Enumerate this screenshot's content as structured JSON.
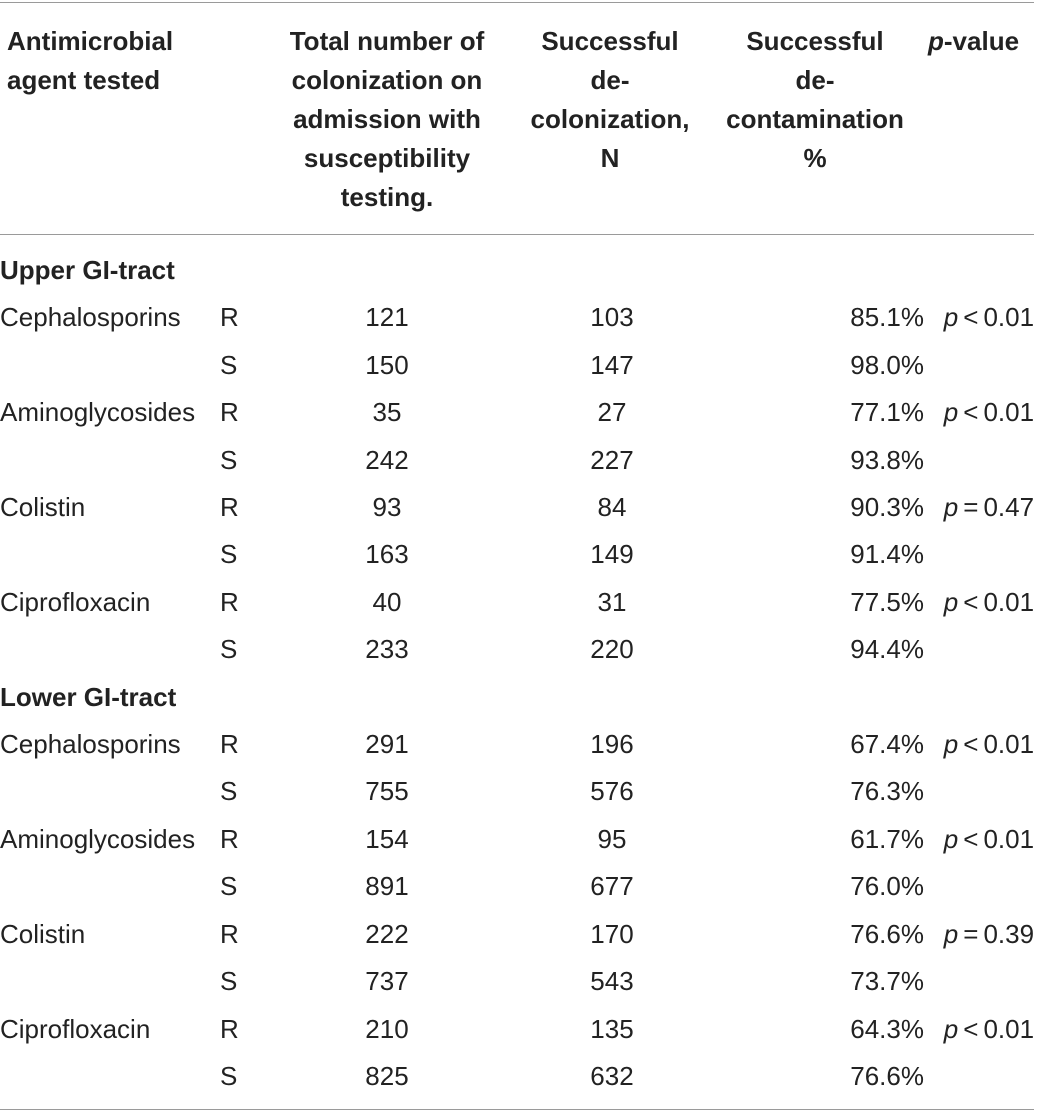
{
  "headers": {
    "col1": [
      "Antimicrobial",
      "agent tested"
    ],
    "col2": [
      "Total number of",
      "colonization on",
      "admission with",
      "susceptibility",
      "testing."
    ],
    "col3": [
      "Successful",
      "de-",
      "colonization,",
      "N"
    ],
    "col4": [
      "Successful",
      "de-",
      "contamination",
      "%"
    ],
    "col5_italic": "p",
    "col5_rest": "-value"
  },
  "sections": [
    {
      "title": "Upper GI-tract",
      "rows": [
        {
          "agent": "Cephalosporins",
          "rs": "R",
          "total": "121",
          "n": "103",
          "pct": "85.1%",
          "p_sym": "p",
          "p_op": "<",
          "p_val": "0.01"
        },
        {
          "agent": "",
          "rs": "S",
          "total": "150",
          "n": "147",
          "pct": "98.0%",
          "p_sym": "",
          "p_op": "",
          "p_val": ""
        },
        {
          "agent": "Aminoglycosides",
          "rs": "R",
          "total": "35",
          "n": "27",
          "pct": "77.1%",
          "p_sym": "p",
          "p_op": "<",
          "p_val": "0.01"
        },
        {
          "agent": "",
          "rs": "S",
          "total": "242",
          "n": "227",
          "pct": "93.8%",
          "p_sym": "",
          "p_op": "",
          "p_val": ""
        },
        {
          "agent": "Colistin",
          "rs": "R",
          "total": "93",
          "n": "84",
          "pct": "90.3%",
          "p_sym": "p",
          "p_op": "=",
          "p_val": "0.47"
        },
        {
          "agent": "",
          "rs": "S",
          "total": "163",
          "n": "149",
          "pct": "91.4%",
          "p_sym": "",
          "p_op": "",
          "p_val": ""
        },
        {
          "agent": "Ciprofloxacin",
          "rs": "R",
          "total": "40",
          "n": "31",
          "pct": "77.5%",
          "p_sym": "p",
          "p_op": "<",
          "p_val": "0.01"
        },
        {
          "agent": "",
          "rs": "S",
          "total": "233",
          "n": "220",
          "pct": "94.4%",
          "p_sym": "",
          "p_op": "",
          "p_val": ""
        }
      ]
    },
    {
      "title": "Lower GI-tract",
      "rows": [
        {
          "agent": "Cephalosporins",
          "rs": "R",
          "total": "291",
          "n": "196",
          "pct": "67.4%",
          "p_sym": "p",
          "p_op": "<",
          "p_val": "0.01"
        },
        {
          "agent": "",
          "rs": "S",
          "total": "755",
          "n": "576",
          "pct": "76.3%",
          "p_sym": "",
          "p_op": "",
          "p_val": ""
        },
        {
          "agent": "Aminoglycosides",
          "rs": "R",
          "total": "154",
          "n": "95",
          "pct": "61.7%",
          "p_sym": "p",
          "p_op": "<",
          "p_val": "0.01"
        },
        {
          "agent": "",
          "rs": "S",
          "total": "891",
          "n": "677",
          "pct": "76.0%",
          "p_sym": "",
          "p_op": "",
          "p_val": ""
        },
        {
          "agent": "Colistin",
          "rs": "R",
          "total": "222",
          "n": "170",
          "pct": "76.6%",
          "p_sym": "p",
          "p_op": "=",
          "p_val": "0.39"
        },
        {
          "agent": "",
          "rs": "S",
          "total": "737",
          "n": "543",
          "pct": "73.7%",
          "p_sym": "",
          "p_op": "",
          "p_val": ""
        },
        {
          "agent": "Ciprofloxacin",
          "rs": "R",
          "total": "210",
          "n": "135",
          "pct": "64.3%",
          "p_sym": "p",
          "p_op": "<",
          "p_val": "0.01"
        },
        {
          "agent": "",
          "rs": "S",
          "total": "825",
          "n": "632",
          "pct": "76.6%",
          "p_sym": "",
          "p_op": "",
          "p_val": ""
        }
      ]
    }
  ]
}
